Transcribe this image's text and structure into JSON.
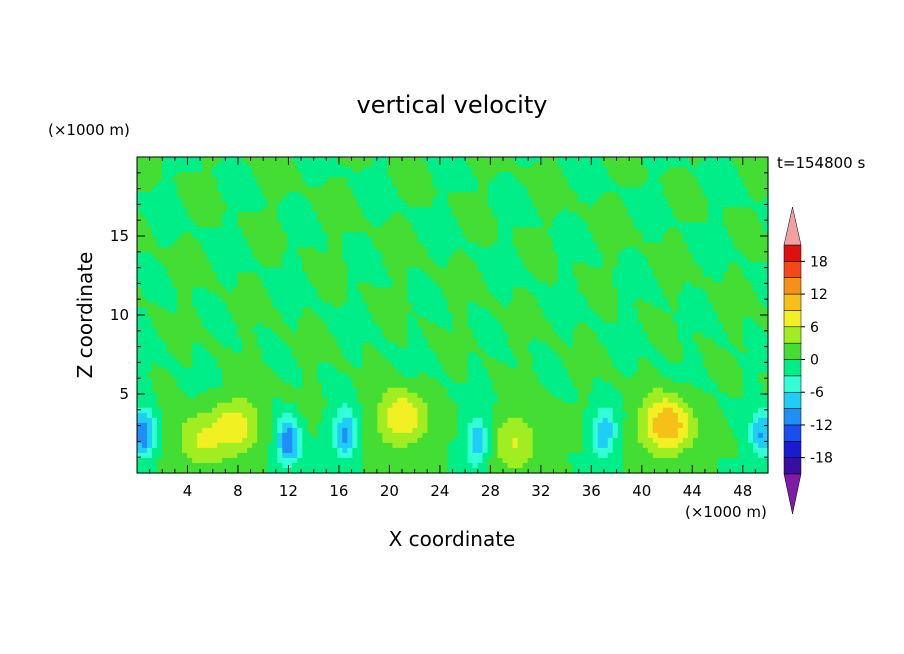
{
  "chart_data": {
    "type": "heatmap",
    "title": "vertical velocity",
    "xlabel": "X coordinate",
    "ylabel": "Z coordinate",
    "x_unit": "(×1000 m)",
    "y_unit": "(×1000 m)",
    "time_label": "t=154800 s",
    "xlim": [
      0,
      50
    ],
    "ylim": [
      0,
      20
    ],
    "x_ticks": [
      4,
      8,
      12,
      16,
      20,
      24,
      28,
      32,
      36,
      40,
      44,
      48
    ],
    "y_ticks": [
      5,
      10,
      15
    ],
    "colorbar": {
      "levels": [
        -21,
        -18,
        -15,
        -12,
        -9,
        -6,
        -3,
        0,
        3,
        6,
        9,
        12,
        15,
        18,
        21
      ],
      "tick_labels": [
        18,
        12,
        6,
        0,
        -6,
        -12,
        -18
      ],
      "colors": [
        "#7d1aa6",
        "#3a0ea3",
        "#1a1ad2",
        "#1a4ef0",
        "#1f8ef5",
        "#1fcdf5",
        "#33ffd6",
        "#00ee88",
        "#44dd33",
        "#a0ee22",
        "#f0f022",
        "#f5c018",
        "#f59018",
        "#f54818",
        "#e01010",
        "#f0a0a0"
      ],
      "extend": "both"
    },
    "features": [
      {
        "kind": "updraft",
        "x_center": 21,
        "z_center": 3.5,
        "peak": 9
      },
      {
        "kind": "updraft",
        "x_center": 42,
        "z_center": 3.0,
        "peak": 12
      },
      {
        "kind": "updraft",
        "x_center": 8,
        "z_center": 3.0,
        "peak": 7
      },
      {
        "kind": "updraft",
        "x_center": 5,
        "z_center": 2.0,
        "peak": 6
      },
      {
        "kind": "updraft",
        "x_center": 30,
        "z_center": 2.0,
        "peak": 6
      },
      {
        "kind": "downdraft",
        "x_center": 0.5,
        "z_center": 2.5,
        "peak": -12
      },
      {
        "kind": "downdraft",
        "x_center": 12,
        "z_center": 2.0,
        "peak": -12
      },
      {
        "kind": "downdraft",
        "x_center": 16.5,
        "z_center": 2.5,
        "peak": -10
      },
      {
        "kind": "downdraft",
        "x_center": 27,
        "z_center": 2.0,
        "peak": -9
      },
      {
        "kind": "downdraft",
        "x_center": 37,
        "z_center": 2.5,
        "peak": -9
      },
      {
        "kind": "downdraft",
        "x_center": 49.5,
        "z_center": 2.5,
        "peak": -9
      }
    ]
  }
}
